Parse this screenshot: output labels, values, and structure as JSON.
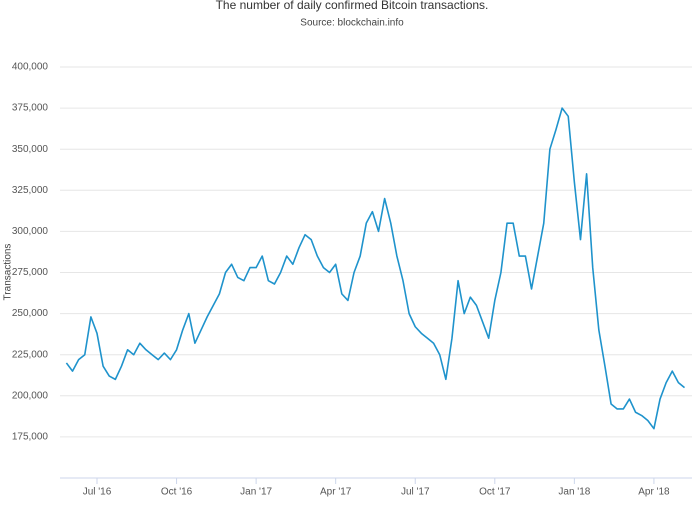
{
  "chart_data": {
    "type": "line",
    "title": "The number of daily confirmed Bitcoin transactions.",
    "subtitle": "Source: blockchain.info",
    "y_label": "Transactions",
    "categories": [
      null,
      null,
      null,
      null,
      null,
      "Jul '16",
      null,
      null,
      null,
      null,
      null,
      null,
      null,
      null,
      null,
      null,
      null,
      null,
      "Oct '16",
      null,
      null,
      null,
      null,
      null,
      null,
      null,
      null,
      null,
      null,
      null,
      null,
      "Jan '17",
      null,
      null,
      null,
      null,
      null,
      null,
      null,
      null,
      null,
      null,
      null,
      null,
      "Apr '17",
      null,
      null,
      null,
      null,
      null,
      null,
      null,
      null,
      null,
      null,
      null,
      null,
      "Jul '17",
      null,
      null,
      null,
      null,
      null,
      null,
      null,
      null,
      null,
      null,
      null,
      null,
      "Oct '17",
      null,
      null,
      null,
      null,
      null,
      null,
      null,
      null,
      null,
      null,
      null,
      null,
      "Jan '18",
      null,
      null,
      null,
      null,
      null,
      null,
      null,
      null,
      null,
      null,
      null,
      null,
      "Apr '18",
      null,
      null,
      null,
      null,
      null
    ],
    "series": [
      {
        "name": "Transactions",
        "color": "#1f93cc",
        "values": [
          220000,
          215000,
          222000,
          225000,
          248000,
          238000,
          218000,
          212000,
          210000,
          218000,
          228000,
          225000,
          232000,
          228000,
          225000,
          222000,
          226000,
          222000,
          228000,
          240000,
          250000,
          232000,
          240000,
          248000,
          255000,
          262000,
          275000,
          280000,
          272000,
          270000,
          278000,
          278000,
          285000,
          270000,
          268000,
          275000,
          285000,
          280000,
          290000,
          298000,
          295000,
          285000,
          278000,
          275000,
          280000,
          262000,
          258000,
          275000,
          285000,
          305000,
          312000,
          300000,
          320000,
          305000,
          285000,
          270000,
          250000,
          242000,
          238000,
          235000,
          232000,
          225000,
          210000,
          235000,
          270000,
          250000,
          260000,
          255000,
          245000,
          235000,
          258000,
          275000,
          305000,
          305000,
          285000,
          285000,
          265000,
          285000,
          305000,
          350000,
          362000,
          375000,
          370000,
          330000,
          295000,
          335000,
          278000,
          240000,
          218000,
          195000,
          192000,
          192000,
          198000,
          190000,
          188000,
          185000,
          180000,
          198000,
          208000,
          215000,
          208000,
          205000
        ]
      }
    ],
    "ylim": [
      150000,
      400000
    ],
    "yticks": [
      {
        "value": 175000,
        "label": "175,000"
      },
      {
        "value": 200000,
        "label": "200,000"
      },
      {
        "value": 225000,
        "label": "225,000"
      },
      {
        "value": 250000,
        "label": "250,000"
      },
      {
        "value": 275000,
        "label": "275,000"
      },
      {
        "value": 300000,
        "label": "300,000"
      },
      {
        "value": 325000,
        "label": "325,000"
      },
      {
        "value": 350000,
        "label": "350,000"
      },
      {
        "value": 375000,
        "label": "375,000"
      },
      {
        "value": 400000,
        "label": "400,000"
      }
    ],
    "grid": true
  }
}
